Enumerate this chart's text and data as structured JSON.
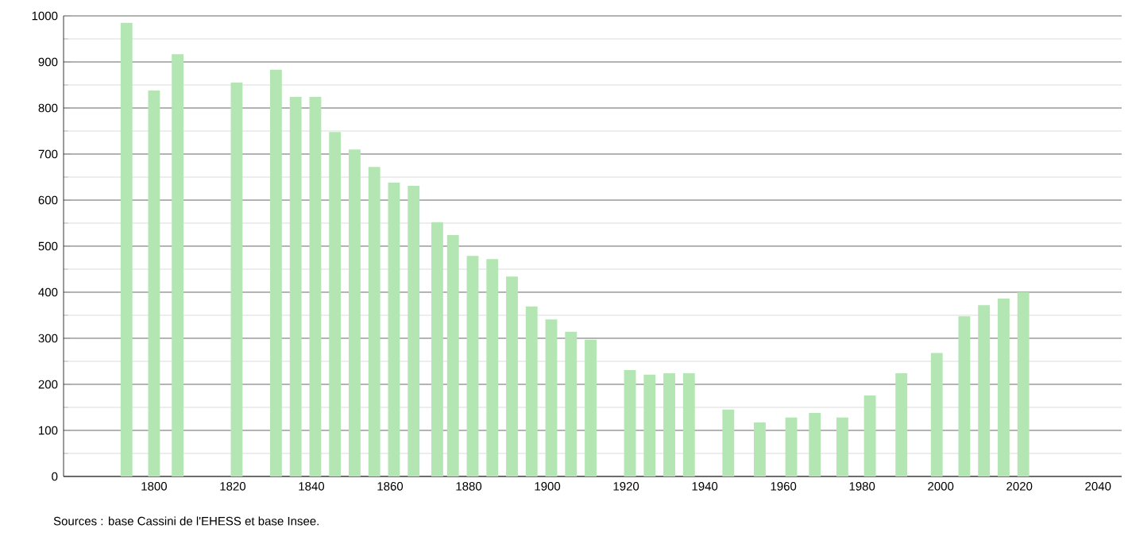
{
  "chart_data": {
    "type": "bar",
    "x": [
      1793,
      1800,
      1806,
      1821,
      1831,
      1836,
      1841,
      1846,
      1851,
      1856,
      1861,
      1866,
      1872,
      1876,
      1881,
      1886,
      1891,
      1896,
      1901,
      1906,
      1911,
      1921,
      1926,
      1931,
      1936,
      1946,
      1954,
      1962,
      1968,
      1975,
      1982,
      1990,
      1999,
      2006,
      2011,
      2016,
      2021
    ],
    "values": [
      985,
      838,
      917,
      855,
      883,
      824,
      824,
      748,
      710,
      672,
      638,
      631,
      552,
      524,
      479,
      472,
      434,
      369,
      341,
      314,
      297,
      231,
      221,
      224,
      224,
      145,
      117,
      128,
      138,
      128,
      176,
      224,
      268,
      348,
      372,
      386,
      400
    ],
    "color": "#b3e6b3",
    "xlim": [
      1777,
      2046
    ],
    "xticks": [
      1800,
      1820,
      1840,
      1860,
      1880,
      1900,
      1920,
      1940,
      1960,
      1980,
      2000,
      2020,
      2040
    ],
    "ylim": [
      0,
      1000
    ],
    "yticks": [
      0,
      100,
      200,
      300,
      400,
      500,
      600,
      700,
      800,
      900,
      1000
    ],
    "grid": "y",
    "annotations": [
      "Sources : base Cassini de l'EHESS et base Insee."
    ]
  }
}
